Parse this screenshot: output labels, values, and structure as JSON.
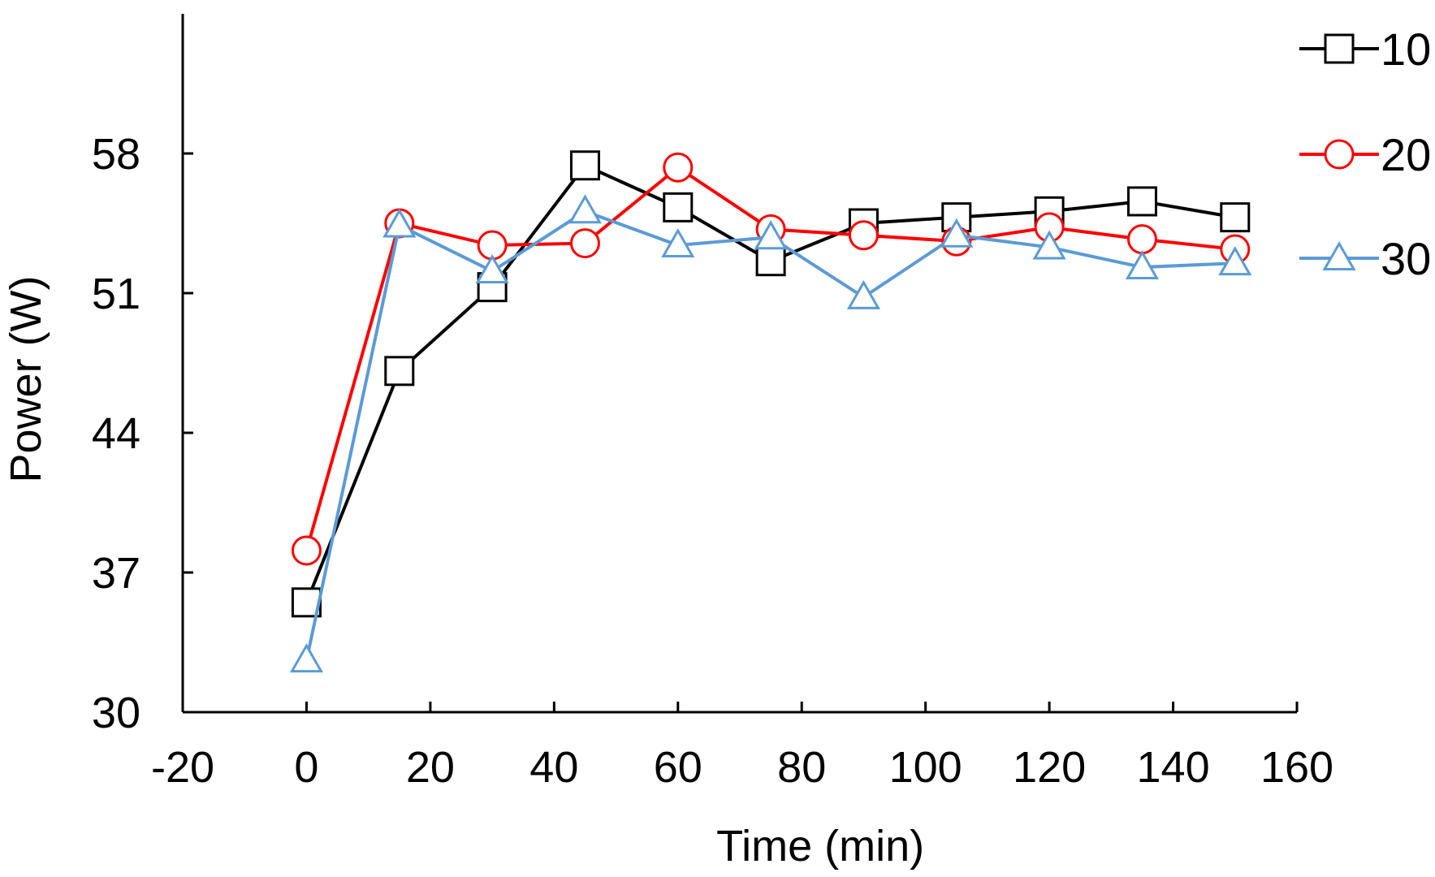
{
  "chart_data": {
    "type": "line",
    "title": "",
    "xlabel": "Time (min)",
    "ylabel": "Power (W)",
    "xlim": [
      -20,
      160
    ],
    "ylim": [
      30,
      65
    ],
    "xticks": [
      "-20",
      "0",
      "20",
      "40",
      "60",
      "80",
      "100",
      "120",
      "140",
      "160"
    ],
    "yticks": [
      "30",
      "37",
      "44",
      "51",
      "58"
    ],
    "grid": false,
    "legend_position": "top-right",
    "x": [
      0,
      15,
      30,
      45,
      60,
      75,
      90,
      105,
      120,
      135,
      150
    ],
    "series": [
      {
        "name": "10",
        "color": "#000000",
        "marker": "square",
        "values": [
          35.5,
          47.1,
          51.3,
          57.4,
          55.3,
          52.6,
          54.5,
          54.8,
          55.1,
          55.6,
          54.8
        ]
      },
      {
        "name": "20",
        "color": "#ff0000",
        "marker": "circle",
        "values": [
          38.1,
          54.5,
          53.4,
          53.5,
          57.3,
          54.2,
          53.9,
          53.6,
          54.3,
          53.7,
          53.2
        ]
      },
      {
        "name": "30",
        "color": "#5b9bd5",
        "marker": "triangle",
        "values": [
          32.6,
          54.4,
          52.1,
          55.1,
          53.4,
          53.8,
          50.8,
          53.9,
          53.3,
          52.3,
          52.5
        ]
      }
    ]
  }
}
